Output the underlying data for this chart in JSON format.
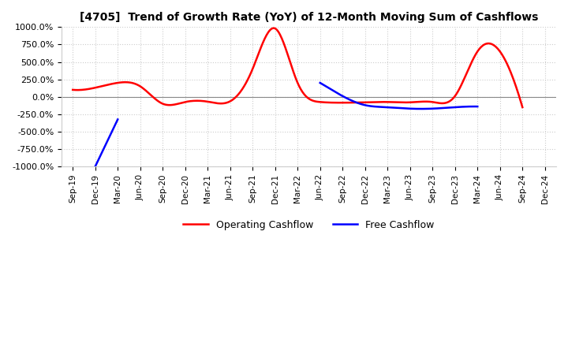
{
  "title": "[4705]  Trend of Growth Rate (YoY) of 12-Month Moving Sum of Cashflows",
  "ylim": [
    -1000,
    1000
  ],
  "yticks": [
    1000.0,
    750.0,
    500.0,
    250.0,
    0.0,
    -250.0,
    -500.0,
    -750.0,
    -1000.0
  ],
  "ytick_labels": [
    "1000.0%",
    "750.0%",
    "500.0%",
    "250.0%",
    "0.0%",
    "-250.0%",
    "-500.0%",
    "-750.0%",
    "-1000.0%"
  ],
  "operating_color": "#ff0000",
  "free_color": "#0000ff",
  "background_color": "#ffffff",
  "grid_color": "#cccccc",
  "x_labels": [
    "Sep-19",
    "Dec-19",
    "Mar-20",
    "Jun-20",
    "Sep-20",
    "Dec-20",
    "Mar-21",
    "Jun-21",
    "Sep-21",
    "Dec-21",
    "Mar-22",
    "Jun-22",
    "Sep-22",
    "Dec-22",
    "Mar-23",
    "Jun-23",
    "Sep-23",
    "Dec-23",
    "Mar-24",
    "Jun-24",
    "Sep-24",
    "Dec-24"
  ],
  "operating_cashflow": [
    100,
    130,
    200,
    150,
    -100,
    -75,
    -70,
    -65,
    400,
    980,
    200,
    -75,
    -85,
    -80,
    -75,
    -80,
    -75,
    10,
    650,
    650,
    -150,
    null
  ],
  "free_cashflow": [
    null,
    -1000,
    -325,
    null,
    null,
    null,
    null,
    null,
    null,
    null,
    null,
    200,
    10,
    -120,
    -150,
    -170,
    -170,
    -150,
    -140,
    null,
    null,
    null
  ]
}
